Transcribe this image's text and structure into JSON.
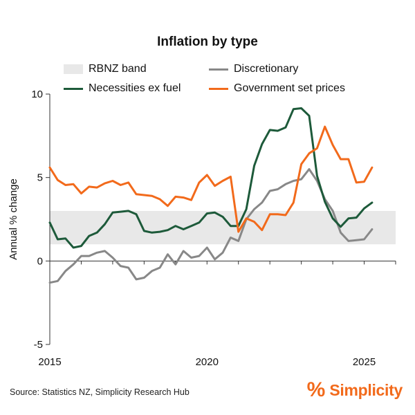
{
  "chart_data": {
    "type": "line",
    "title": "Inflation by type",
    "ylabel": "Annual % change",
    "xlabel": "",
    "xlim": [
      2015,
      2026
    ],
    "ylim": [
      -5,
      10
    ],
    "x_ticks": [
      "2015",
      "2020",
      "2025"
    ],
    "y_ticks": [
      "10",
      "5",
      "0",
      "-5"
    ],
    "grid": false,
    "legend_position": "top",
    "band": {
      "name": "RBNZ band",
      "y": [
        1,
        3
      ],
      "color": "#e8e8e8"
    },
    "x": [
      2015.0,
      2015.25,
      2015.5,
      2015.75,
      2016.0,
      2016.25,
      2016.5,
      2016.75,
      2017.0,
      2017.25,
      2017.5,
      2017.75,
      2018.0,
      2018.25,
      2018.5,
      2018.75,
      2019.0,
      2019.25,
      2019.5,
      2019.75,
      2020.0,
      2020.25,
      2020.5,
      2020.75,
      2021.0,
      2021.25,
      2021.5,
      2021.75,
      2022.0,
      2022.25,
      2022.5,
      2022.75,
      2023.0,
      2023.25,
      2023.5,
      2023.75,
      2024.0,
      2024.25,
      2024.5,
      2024.75,
      2025.0,
      2025.25
    ],
    "series": [
      {
        "name": "Discretionary",
        "color": "#888888",
        "values": [
          -1.3,
          -1.2,
          -0.6,
          -0.2,
          0.3,
          0.3,
          0.5,
          0.6,
          0.2,
          -0.3,
          -0.4,
          -1.1,
          -1.0,
          -0.6,
          -0.4,
          0.4,
          -0.2,
          0.6,
          0.2,
          0.3,
          0.8,
          0.1,
          0.5,
          1.4,
          1.2,
          2.5,
          3.1,
          3.5,
          4.2,
          4.3,
          4.6,
          4.8,
          4.9,
          5.5,
          4.8,
          3.7,
          3.0,
          1.7,
          1.2,
          1.25,
          1.3,
          1.9
        ]
      },
      {
        "name": "Necessities ex fuel",
        "color": "#1d5a3a",
        "values": [
          2.3,
          1.3,
          1.35,
          0.8,
          0.9,
          1.5,
          1.7,
          2.2,
          2.9,
          2.95,
          3.0,
          2.8,
          1.8,
          1.7,
          1.75,
          1.85,
          2.1,
          1.9,
          2.1,
          2.3,
          2.85,
          2.9,
          2.65,
          2.1,
          2.1,
          3.1,
          5.7,
          7.0,
          7.85,
          7.8,
          8.0,
          9.1,
          9.15,
          8.7,
          5.1,
          3.55,
          2.55,
          2.05,
          2.55,
          2.6,
          3.15,
          3.5
        ]
      },
      {
        "name": "Government set prices",
        "color": "#f26a1b",
        "values": [
          5.6,
          4.85,
          4.55,
          4.6,
          4.05,
          4.45,
          4.4,
          4.65,
          4.8,
          4.55,
          4.7,
          4.0,
          3.95,
          3.9,
          3.7,
          3.3,
          3.85,
          3.8,
          3.65,
          4.7,
          5.15,
          4.5,
          4.8,
          5.05,
          1.75,
          2.55,
          2.35,
          1.85,
          2.8,
          2.8,
          2.75,
          3.5,
          5.8,
          6.45,
          6.75,
          8.05,
          6.95,
          6.1,
          6.1,
          4.7,
          4.75,
          5.6
        ]
      }
    ]
  },
  "footer": {
    "source": "Source: Statistics NZ, Simplicity Research Hub",
    "brand_icon": "%",
    "brand_name": "Simplicity",
    "brand_color": "#f26a1b"
  }
}
